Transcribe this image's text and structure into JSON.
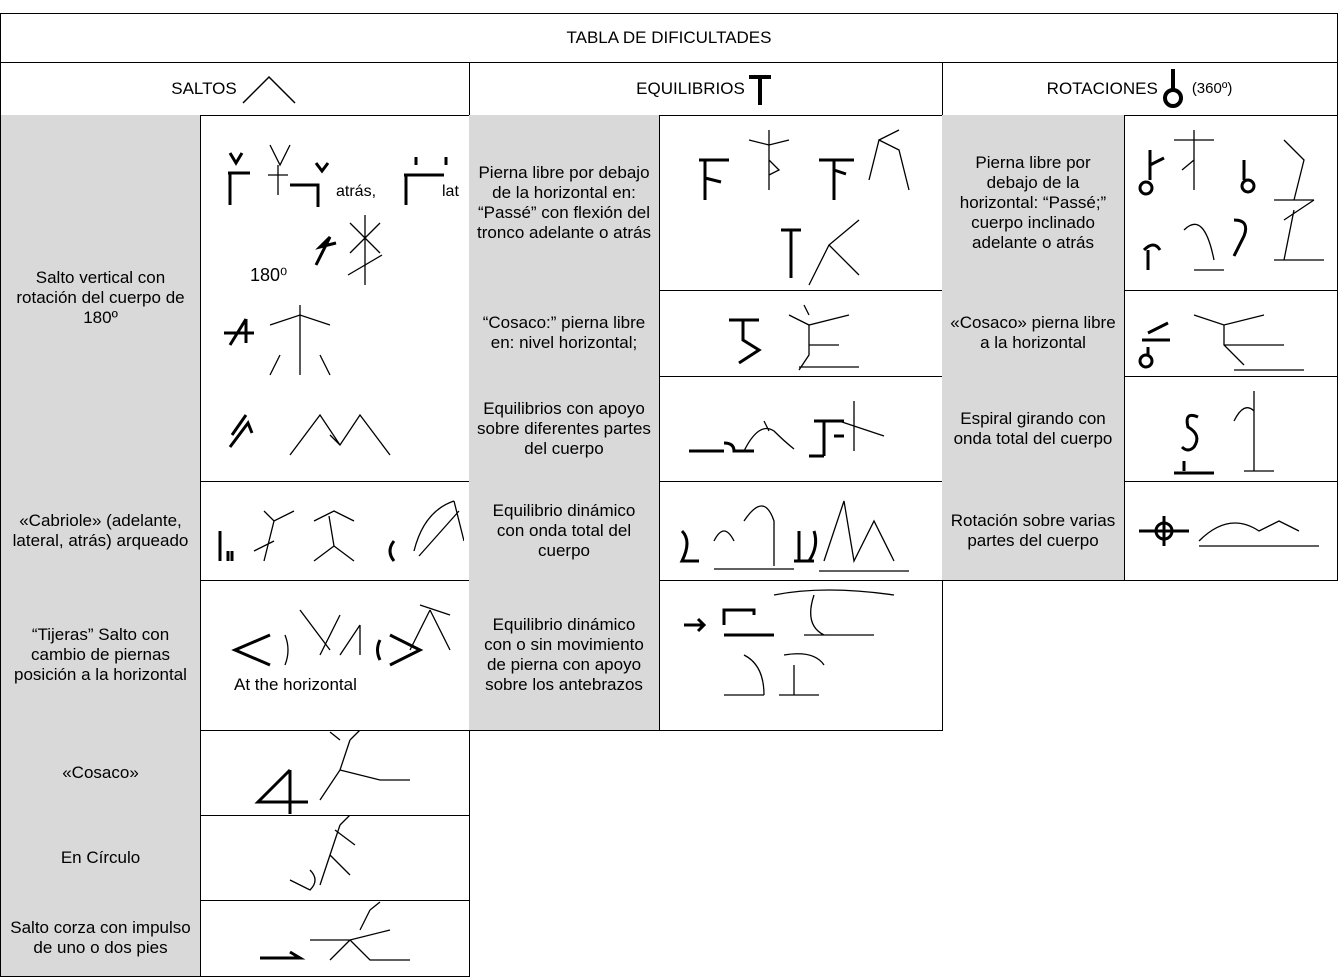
{
  "title": "TABLA DE DIFICULTADES",
  "headers": [
    {
      "label": "SALTOS"
    },
    {
      "label": "EQUILIBRIOS"
    },
    {
      "label": "ROTACIONES",
      "note": "(360º)"
    }
  ],
  "saltos": [
    {
      "label": "Salto vertical con rotación del cuerpo de 180º",
      "captions": [
        "atrás,",
        "lat",
        "180⁰"
      ]
    },
    {
      "label": "«Cabriole» (adelante, lateral, atrás) arqueado"
    },
    {
      "label": "“Tijeras” Salto con cambio de piernas posición a la horizontal",
      "captions": [
        "At the horizontal"
      ]
    },
    {
      "label": "«Cosaco»"
    },
    {
      "label": "En Círculo"
    },
    {
      "label": "Salto corza con impulso de uno o dos pies"
    }
  ],
  "equilibrios": [
    {
      "label": "Pierna libre por debajo de la horizontal en: “Passé” con flexión del tronco adelante o atrás"
    },
    {
      "label": "“Cosaco:” pierna libre en: nivel horizontal;"
    },
    {
      "label": "Equilibrios con apoyo sobre diferentes partes del cuerpo"
    },
    {
      "label": "Equilibrio dinámico con onda total del cuerpo"
    },
    {
      "label": "Equilibrio dinámico con o sin movimiento de pierna con apoyo sobre los antebrazos"
    }
  ],
  "rotaciones": [
    {
      "label": "Pierna libre por debajo de la horizontal: “Passé;” cuerpo inclinado adelante o atrás"
    },
    {
      "label": "«Cosaco» pierna libre a la horizontal"
    },
    {
      "label": "Espiral girando con onda total del cuerpo"
    },
    {
      "label": "Rotación sobre varias partes del cuerpo"
    }
  ]
}
